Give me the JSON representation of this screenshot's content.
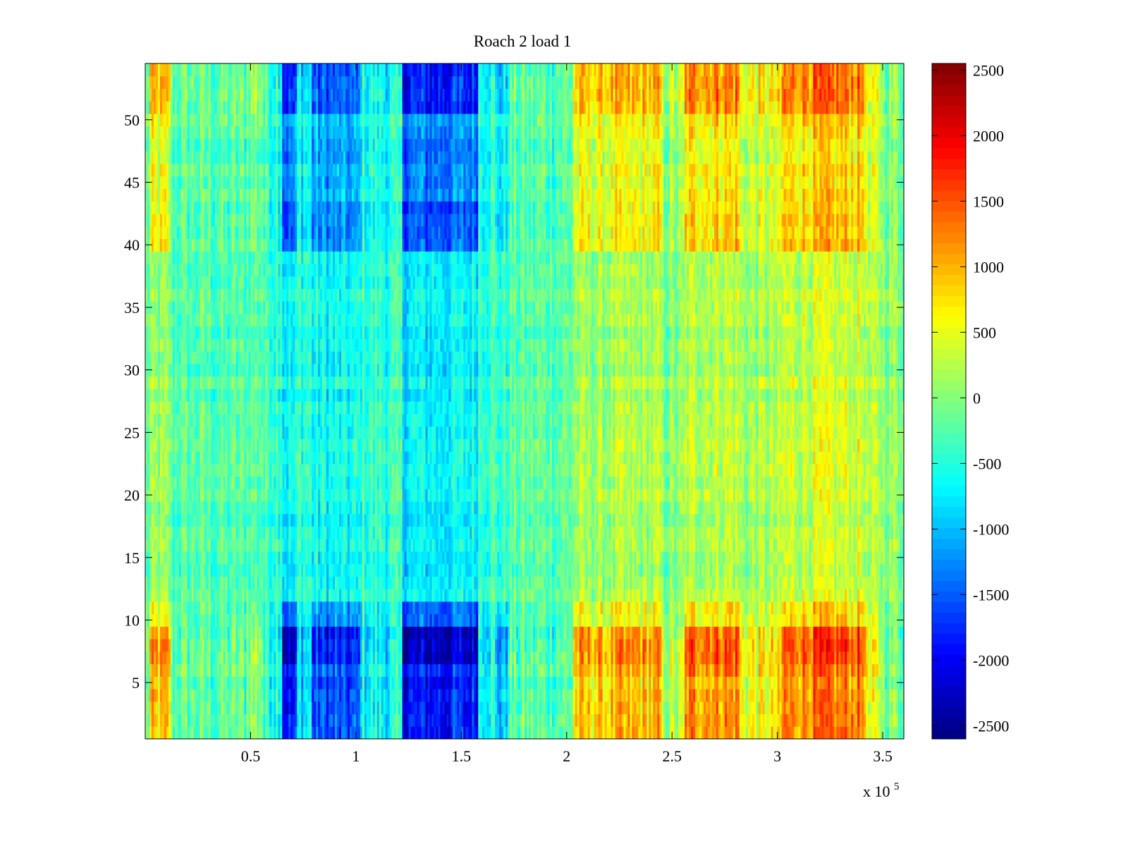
{
  "chart_data": {
    "type": "heatmap",
    "title": "Roach 2 load 1",
    "xlabel": "",
    "ylabel": "",
    "x_multiplier_label": "x 10",
    "x_multiplier_exponent": "5",
    "xlim": [
      0,
      360000
    ],
    "ylim": [
      0.5,
      54.5
    ],
    "x_ticks": [
      {
        "value": 50000,
        "label": "0.5"
      },
      {
        "value": 100000,
        "label": "1"
      },
      {
        "value": 150000,
        "label": "1.5"
      },
      {
        "value": 200000,
        "label": "2"
      },
      {
        "value": 250000,
        "label": "2.5"
      },
      {
        "value": 300000,
        "label": "3"
      },
      {
        "value": 350000,
        "label": "3.5"
      }
    ],
    "y_ticks": [
      {
        "value": 5,
        "label": "5"
      },
      {
        "value": 10,
        "label": "10"
      },
      {
        "value": 15,
        "label": "15"
      },
      {
        "value": 20,
        "label": "20"
      },
      {
        "value": 25,
        "label": "25"
      },
      {
        "value": 30,
        "label": "30"
      },
      {
        "value": 35,
        "label": "35"
      },
      {
        "value": 40,
        "label": "40"
      },
      {
        "value": 45,
        "label": "45"
      },
      {
        "value": 50,
        "label": "50"
      }
    ],
    "colorbar": {
      "colormap": "jet",
      "clim": [
        -2600,
        2550
      ],
      "ticks": [
        {
          "value": 2500,
          "label": "2500"
        },
        {
          "value": 2000,
          "label": "2000"
        },
        {
          "value": 1500,
          "label": "1500"
        },
        {
          "value": 1000,
          "label": "1000"
        },
        {
          "value": 500,
          "label": "500"
        },
        {
          "value": 0,
          "label": "0"
        },
        {
          "value": -500,
          "label": "-500"
        },
        {
          "value": -1000,
          "label": "-1000"
        },
        {
          "value": -1500,
          "label": "-1500"
        },
        {
          "value": -2000,
          "label": "-2000"
        },
        {
          "value": -2500,
          "label": "-2500"
        }
      ]
    },
    "rows": 54,
    "column_bands": [
      {
        "x_start": 0,
        "x_end": 2000,
        "value": 200
      },
      {
        "x_start": 2000,
        "x_end": 12000,
        "value": 1300
      },
      {
        "x_start": 12000,
        "x_end": 48000,
        "value": 100
      },
      {
        "x_start": 48000,
        "x_end": 56000,
        "value": 500
      },
      {
        "x_start": 56000,
        "x_end": 65000,
        "value": -100
      },
      {
        "x_start": 65000,
        "x_end": 72000,
        "value": -1900
      },
      {
        "x_start": 72000,
        "x_end": 79000,
        "value": -500
      },
      {
        "x_start": 79000,
        "x_end": 102000,
        "value": -1500
      },
      {
        "x_start": 102000,
        "x_end": 122000,
        "value": -300
      },
      {
        "x_start": 122000,
        "x_end": 158000,
        "value": -1900
      },
      {
        "x_start": 158000,
        "x_end": 166000,
        "value": -300
      },
      {
        "x_start": 166000,
        "x_end": 172000,
        "value": -900
      },
      {
        "x_start": 172000,
        "x_end": 203000,
        "value": -100
      },
      {
        "x_start": 203000,
        "x_end": 245000,
        "value": 1100
      },
      {
        "x_start": 245000,
        "x_end": 256000,
        "value": 200
      },
      {
        "x_start": 256000,
        "x_end": 282000,
        "value": 1400
      },
      {
        "x_start": 282000,
        "x_end": 302000,
        "value": 500
      },
      {
        "x_start": 302000,
        "x_end": 342000,
        "value": 1300
      },
      {
        "x_start": 342000,
        "x_end": 350000,
        "value": 100
      },
      {
        "x_start": 350000,
        "x_end": 360000,
        "value": -400
      }
    ],
    "row_weights": [
      {
        "y_start": 1,
        "y_end": 6,
        "weight": 0.8
      },
      {
        "y_start": 6,
        "y_end": 9,
        "weight": 1.0
      },
      {
        "y_start": 9,
        "y_end": 11,
        "weight": 0.55
      },
      {
        "y_start": 11,
        "y_end": 39,
        "weight": 0.2
      },
      {
        "y_start": 39,
        "y_end": 43,
        "weight": 0.6
      },
      {
        "y_start": 43,
        "y_end": 50,
        "weight": 0.5
      },
      {
        "y_start": 50,
        "y_end": 54,
        "weight": 0.8
      }
    ],
    "background_trend": [
      {
        "x": 0,
        "value": 0
      },
      {
        "x": 120000,
        "value": -200
      },
      {
        "x": 200000,
        "value": 150
      },
      {
        "x": 360000,
        "value": 600
      }
    ]
  }
}
